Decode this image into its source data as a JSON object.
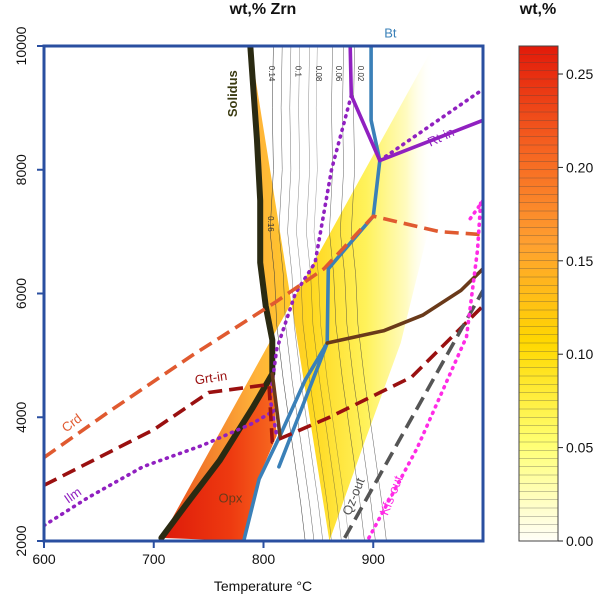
{
  "chart_data": [
    {
      "type": "phase diagram",
      "title": "wt,%  Zrn",
      "xlabel": "Temperature °C",
      "ylabel": "",
      "xlim": [
        600,
        1000
      ],
      "ylim": [
        2000,
        10000
      ],
      "x_ticks": [
        "600",
        "700",
        "800",
        "900"
      ],
      "y_ticks": [
        "2000",
        "4000",
        "6000",
        "8000",
        "10000"
      ],
      "contour_labels": [
        "0.14",
        "0.1",
        "0.08",
        "0.06",
        "0.02",
        "0.16"
      ],
      "lines": [
        {
          "label": "Solidus",
          "color": "#2a2a12",
          "style": "solid",
          "points": [
            [
              707,
              2050
            ],
            [
              730,
              2600
            ],
            [
              760,
              3300
            ],
            [
              790,
              4150
            ],
            [
              808,
              4700
            ],
            [
              808,
              5250
            ],
            [
              802,
              5800
            ],
            [
              797,
              6500
            ],
            [
              797,
              7500
            ],
            [
              794,
              8500
            ],
            [
              790,
              9500
            ],
            [
              788,
              10000
            ]
          ]
        },
        {
          "label": "Bt",
          "color": "#3a80b8",
          "style": "solid",
          "points": [
            [
              898,
              10000
            ],
            [
              898,
              8800
            ],
            [
              906,
              8150
            ],
            [
              900,
              7250
            ],
            [
              859,
              6400
            ],
            [
              858,
              5200
            ],
            [
              838,
              4600
            ],
            [
              815,
              3700
            ],
            [
              796,
              3000
            ],
            [
              782,
              2000
            ]
          ]
        },
        {
          "label": "",
          "color": "#3a80b8",
          "style": "solid",
          "points": [
            [
              814,
              3200
            ],
            [
              858,
              5200
            ]
          ]
        },
        {
          "label": "Rt-in",
          "color": "#9020c0",
          "style": "solid",
          "points": [
            [
              906,
              8150
            ],
            [
              1000,
              8800
            ]
          ]
        },
        {
          "label": "",
          "color": "#9020c0",
          "style": "solid",
          "points": [
            [
              879,
              10000
            ],
            [
              880,
              9200
            ],
            [
              906,
              8150
            ]
          ]
        },
        {
          "label": "",
          "color": "#9020c0",
          "style": "dotted",
          "points": [
            [
              906,
              8150
            ],
            [
              1000,
              9300
            ]
          ]
        },
        {
          "label": "",
          "color": "#9020c0",
          "style": "dotted",
          "points": [
            [
              880,
              9200
            ],
            [
              862,
              8000
            ],
            [
              847,
              6500
            ],
            [
              829,
              6000
            ],
            [
              812,
              5100
            ],
            [
              806,
              4300
            ],
            [
              812,
              3700
            ]
          ]
        },
        {
          "label": "Ilm",
          "color": "#9020c0",
          "style": "dotted",
          "points": [
            [
              600,
              2250
            ],
            [
              640,
              2700
            ],
            [
              690,
              3200
            ],
            [
              745,
              3550
            ],
            [
              790,
              3900
            ],
            [
              814,
              4150
            ]
          ]
        },
        {
          "label": "Crd",
          "color": "#e05a30",
          "style": "dashed",
          "points": [
            [
              600,
              3350
            ],
            [
              660,
              4100
            ],
            [
              735,
              5000
            ],
            [
              810,
              5850
            ],
            [
              855,
              6400
            ],
            [
              900,
              7250
            ],
            [
              960,
              7000
            ],
            [
              1000,
              6950
            ]
          ]
        },
        {
          "label": "Grt-in",
          "color": "#9a1010",
          "style": "dashed",
          "points": [
            [
              600,
              2900
            ],
            [
              700,
              3800
            ],
            [
              750,
              4400
            ],
            [
              805,
              4530
            ],
            [
              808,
              3600
            ],
            [
              860,
              4000
            ],
            [
              935,
              4650
            ],
            [
              1000,
              5800
            ]
          ]
        },
        {
          "label": "",
          "color": "#6a3a1a",
          "style": "solid",
          "points": [
            [
              858,
              5200
            ],
            [
              910,
              5400
            ],
            [
              945,
              5650
            ],
            [
              980,
              6050
            ],
            [
              1000,
              6400
            ]
          ]
        },
        {
          "label": "Opx",
          "color": "#6a3a1a",
          "style": "solid",
          "points": [
            [
              808,
              4700
            ],
            [
              815,
              3700
            ]
          ]
        },
        {
          "label": "Qz-out",
          "color": "#555555",
          "style": "dashed",
          "points": [
            [
              874,
              2050
            ],
            [
              1000,
              6050
            ]
          ]
        },
        {
          "label": "Kfs-out",
          "color": "#ff2be6",
          "style": "dotted",
          "points": [
            [
              896,
              2050
            ],
            [
              940,
              3500
            ],
            [
              985,
              5300
            ],
            [
              995,
              6700
            ],
            [
              998,
              7500
            ]
          ]
        },
        {
          "label": "",
          "color": "#ff2be6",
          "style": "dotted",
          "points": [
            [
              1000,
              7500
            ],
            [
              988,
              7200
            ]
          ]
        }
      ]
    },
    {
      "type": "colorbar",
      "title": "wt,%",
      "ticks": [
        "0.00",
        "0.05",
        "0.10",
        "0.15",
        "0.20",
        "0.25"
      ],
      "range": [
        0,
        0.265
      ],
      "colors": [
        "#fffef8",
        "#ffff70",
        "#ffd800",
        "#ffa030",
        "#f56020",
        "#e21a0a"
      ]
    }
  ]
}
